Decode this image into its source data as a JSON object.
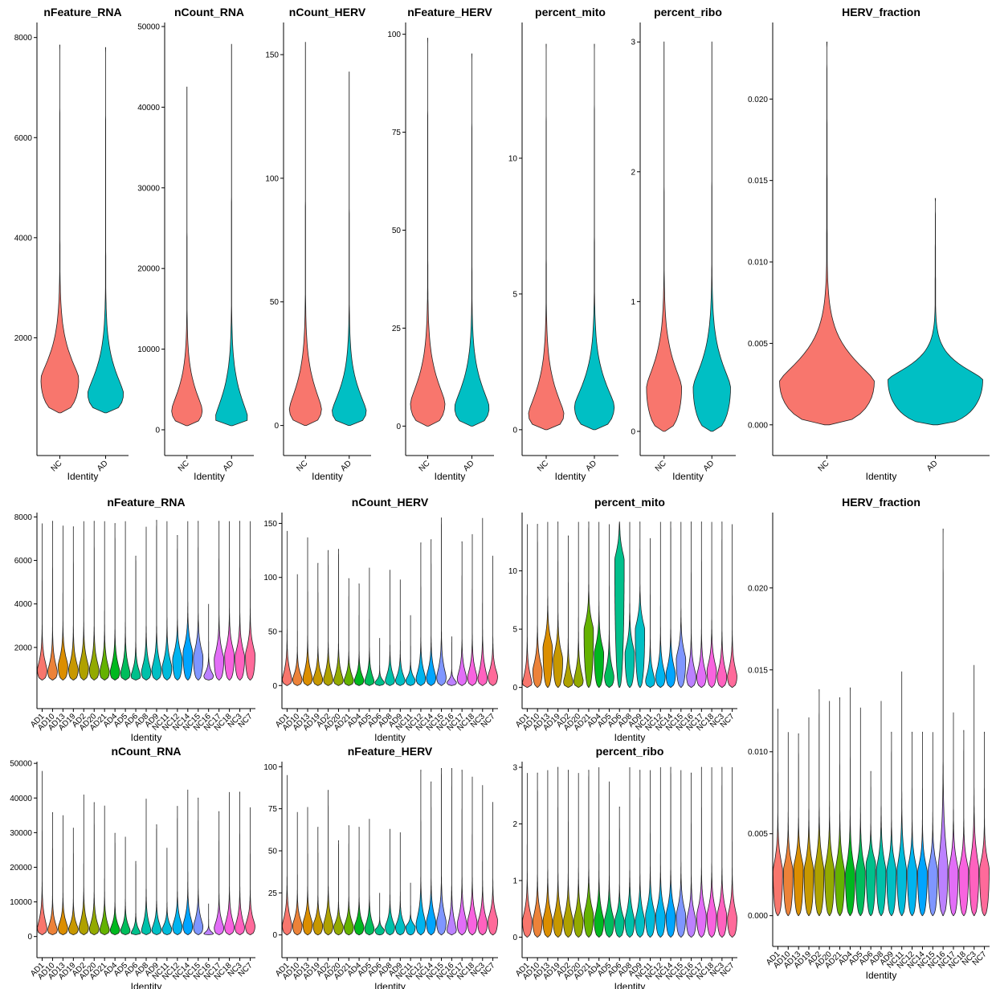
{
  "chart_data": {
    "type": "violin",
    "xlabel": "Identity",
    "group_colors": {
      "NC": "#F8766D",
      "AD": "#00BFC4"
    },
    "groups": [
      "NC",
      "AD"
    ],
    "samples": [
      "AD1",
      "AD10",
      "AD13",
      "AD19",
      "AD2",
      "AD20",
      "AD21",
      "AD4",
      "AD5",
      "AD6",
      "AD8",
      "AD9",
      "NC11",
      "NC12",
      "NC14",
      "NC15",
      "NC16",
      "NC17",
      "NC18",
      "NC3",
      "NC7"
    ],
    "sample_colors": [
      "#F8766D",
      "#EC8239",
      "#DB8E00",
      "#C79800",
      "#AFA100",
      "#93AA00",
      "#64B200",
      "#00B81F",
      "#00BD5C",
      "#00C08B",
      "#00C1AA",
      "#00BFC4",
      "#00BBDA",
      "#00B4EF",
      "#00A5FF",
      "#7F96FF",
      "#BC81FF",
      "#E26EF7",
      "#F863DF",
      "#FF62BF",
      "#FF6A9A"
    ],
    "row1": [
      {
        "title": "nFeature_RNA",
        "ylim": [
          0,
          8300
        ],
        "yticks": [
          2000,
          4000,
          6000,
          8000
        ],
        "tick_labels": [
          "2000",
          "4000",
          "6000",
          "8000"
        ],
        "violins": [
          {
            "min": 500,
            "max": 7850,
            "mode": 1200,
            "width": 0.9
          },
          {
            "min": 500,
            "max": 7800,
            "mode": 900,
            "width": 0.85
          }
        ]
      },
      {
        "title": "nCount_RNA",
        "ylim": [
          -1000,
          50500
        ],
        "yticks": [
          0,
          10000,
          20000,
          30000,
          40000,
          50000
        ],
        "tick_labels": [
          "0",
          "10000",
          "20000",
          "30000",
          "40000",
          "50000"
        ],
        "violins": [
          {
            "min": 500,
            "max": 42500,
            "mode": 2500,
            "width": 0.75
          },
          {
            "min": 500,
            "max": 47800,
            "mode": 1500,
            "width": 0.8
          }
        ]
      },
      {
        "title": "nCount_HERV",
        "ylim": [
          -5,
          163
        ],
        "yticks": [
          0,
          50,
          100,
          150
        ],
        "tick_labels": [
          "0",
          "50",
          "100",
          "150"
        ],
        "violins": [
          {
            "min": 0,
            "max": 155,
            "mode": 7,
            "width": 0.8
          },
          {
            "min": 0,
            "max": 143,
            "mode": 6,
            "width": 0.85
          }
        ]
      },
      {
        "title": "nFeature_HERV",
        "ylim": [
          -3,
          103
        ],
        "yticks": [
          0,
          25,
          50,
          75,
          100
        ],
        "tick_labels": [
          "0",
          "25",
          "50",
          "75",
          "100"
        ],
        "violins": [
          {
            "min": 0,
            "max": 99,
            "mode": 6,
            "width": 0.85
          },
          {
            "min": 0,
            "max": 95,
            "mode": 5,
            "width": 0.85
          }
        ]
      },
      {
        "title": "percent_mito",
        "ylim": [
          -0.3,
          15
        ],
        "yticks": [
          0,
          5,
          10
        ],
        "tick_labels": [
          "0",
          "5",
          "10"
        ],
        "violins": [
          {
            "min": 0,
            "max": 14.2,
            "mode": 0.6,
            "width": 0.8
          },
          {
            "min": 0,
            "max": 14.2,
            "mode": 0.9,
            "width": 0.9
          }
        ]
      },
      {
        "title": "percent_ribo",
        "ylim": [
          -0.05,
          3.15
        ],
        "yticks": [
          0,
          1,
          2,
          3
        ],
        "tick_labels": [
          "0",
          "1",
          "2",
          "3"
        ],
        "violins": [
          {
            "min": 0,
            "max": 3.0,
            "mode": 0.35,
            "width": 0.8
          },
          {
            "min": 0,
            "max": 3.0,
            "mode": 0.35,
            "width": 0.85
          }
        ]
      },
      {
        "title": "HERV_fraction",
        "ylim": [
          -0.0008,
          0.0247
        ],
        "yticks": [
          0.0,
          0.005,
          0.01,
          0.015,
          0.02
        ],
        "tick_labels": [
          "0.000",
          "0.005",
          "0.010",
          "0.015",
          "0.020"
        ],
        "violins": [
          {
            "min": 0,
            "max": 0.0235,
            "mode": 0.0027,
            "width": 0.95
          },
          {
            "min": 0,
            "max": 0.0139,
            "mode": 0.0028,
            "width": 0.95
          }
        ]
      }
    ],
    "per_sample": [
      {
        "title": "nFeature_RNA",
        "ylim": [
          0,
          8200
        ],
        "yticks": [
          2000,
          4000,
          6000,
          8000
        ],
        "tick_labels": [
          "2000",
          "4000",
          "6000",
          "8000"
        ],
        "min": 500,
        "max": [
          7700,
          7800,
          7600,
          7550,
          7800,
          7800,
          7800,
          7700,
          7800,
          6200,
          7550,
          7850,
          7800,
          7150,
          7800,
          7800,
          4000,
          7800,
          7800,
          7800,
          7800
        ],
        "mode": [
          1000,
          900,
          1200,
          1000,
          1100,
          1000,
          900,
          900,
          800,
          700,
          900,
          1000,
          1100,
          1500,
          1800,
          1600,
          700,
          1500,
          1700,
          1600,
          1700
        ]
      },
      {
        "title": "nCount_HERV",
        "ylim": [
          -5,
          160
        ],
        "yticks": [
          0,
          50,
          100,
          150
        ],
        "tick_labels": [
          "0",
          "50",
          "100",
          "150"
        ],
        "min": 0,
        "max": [
          143,
          103,
          137,
          113,
          125,
          126,
          99,
          94,
          109,
          44,
          107,
          98,
          65,
          132,
          135,
          155,
          45,
          133,
          140,
          155,
          120
        ],
        "mode": [
          6,
          6,
          7,
          6,
          6,
          5,
          5,
          5,
          4,
          3,
          5,
          5,
          5,
          7,
          8,
          8,
          3,
          7,
          8,
          7,
          9
        ]
      },
      {
        "title": "percent_mito",
        "ylim": [
          -0.3,
          15
        ],
        "yticks": [
          0,
          5,
          10
        ],
        "tick_labels": [
          "0",
          "5",
          "10"
        ],
        "min": 0,
        "max": [
          14.0,
          14.0,
          14.2,
          14.2,
          13.0,
          14.2,
          14.2,
          14.2,
          14.0,
          14.2,
          14.2,
          14.2,
          12.8,
          14.2,
          14.2,
          14.2,
          14.2,
          14.2,
          14.2,
          14.2,
          14.0
        ],
        "mode": [
          0.4,
          1.5,
          3.5,
          2.5,
          0.5,
          0.6,
          5.0,
          3.0,
          1.0,
          11.0,
          3.0,
          5.0,
          0.6,
          1.0,
          1.2,
          2.5,
          1.0,
          1.0,
          1.5,
          1.0,
          1.0
        ]
      },
      {
        "title": "nCount_RNA",
        "ylim": [
          -1000,
          50500
        ],
        "yticks": [
          0,
          10000,
          20000,
          30000,
          40000,
          50000
        ],
        "tick_labels": [
          "0",
          "10000",
          "20000",
          "30000",
          "40000",
          "50000"
        ],
        "min": 500,
        "max": [
          47800,
          35800,
          35000,
          31300,
          41000,
          38700,
          37800,
          29800,
          28800,
          21700,
          39800,
          32300,
          25600,
          37600,
          42400,
          40000,
          9500,
          36100,
          41700,
          41700,
          37300
        ],
        "mode": [
          2500,
          2000,
          2600,
          2200,
          2600,
          2300,
          2000,
          2000,
          1800,
          1000,
          1800,
          2000,
          2200,
          3000,
          3300,
          3000,
          900,
          2600,
          2900,
          2700,
          3200
        ]
      },
      {
        "title": "nFeature_HERV",
        "ylim": [
          -3,
          103
        ],
        "yticks": [
          0,
          25,
          50,
          75,
          100
        ],
        "tick_labels": [
          "0",
          "25",
          "50",
          "75",
          "100"
        ],
        "min": 0,
        "max": [
          95,
          73,
          76,
          64,
          86,
          56,
          65,
          64,
          69,
          25,
          63,
          61,
          31,
          98,
          91,
          99,
          99,
          98,
          94,
          89,
          79
        ],
        "mode": [
          6,
          6,
          7,
          6,
          6,
          5,
          5,
          5,
          4,
          3,
          5,
          5,
          5,
          7,
          8,
          8,
          3,
          7,
          8,
          7,
          9
        ]
      },
      {
        "title": "percent_ribo",
        "ylim": [
          -0.05,
          3.1
        ],
        "yticks": [
          0,
          1,
          2,
          3
        ],
        "tick_labels": [
          "0",
          "1",
          "2",
          "3"
        ],
        "min": 0,
        "max": [
          2.9,
          2.9,
          2.95,
          3.0,
          2.95,
          2.9,
          2.95,
          3.0,
          2.75,
          2.3,
          3.0,
          2.95,
          2.95,
          3.0,
          3.0,
          2.95,
          2.9,
          3.0,
          3.0,
          3.0,
          3.0
        ],
        "mode": [
          0.3,
          0.3,
          0.3,
          0.3,
          0.3,
          0.3,
          0.4,
          0.3,
          0.3,
          0.3,
          0.3,
          0.3,
          0.4,
          0.4,
          0.4,
          0.4,
          0.3,
          0.4,
          0.4,
          0.4,
          0.35
        ]
      },
      {
        "title": "HERV_fraction",
        "ylim": [
          -0.0008,
          0.0246
        ],
        "yticks": [
          0.0,
          0.005,
          0.01,
          0.015,
          0.02
        ],
        "tick_labels": [
          "0.000",
          "0.005",
          "0.010",
          "0.015",
          "0.020"
        ],
        "min": 0,
        "max": [
          0.0126,
          0.0112,
          0.0111,
          0.0121,
          0.0138,
          0.0131,
          0.0133,
          0.0139,
          0.0127,
          0.0088,
          0.0131,
          0.0112,
          0.0149,
          0.0112,
          0.0112,
          0.0112,
          0.0236,
          0.0124,
          0.0113,
          0.0153,
          0.0112
        ],
        "mode": [
          0.0028,
          0.0028,
          0.003,
          0.0028,
          0.0028,
          0.0028,
          0.0027,
          0.0026,
          0.0027,
          0.0032,
          0.0028,
          0.0028,
          0.0028,
          0.0028,
          0.0027,
          0.0028,
          0.003,
          0.0028,
          0.0028,
          0.0029,
          0.0029
        ]
      }
    ]
  }
}
